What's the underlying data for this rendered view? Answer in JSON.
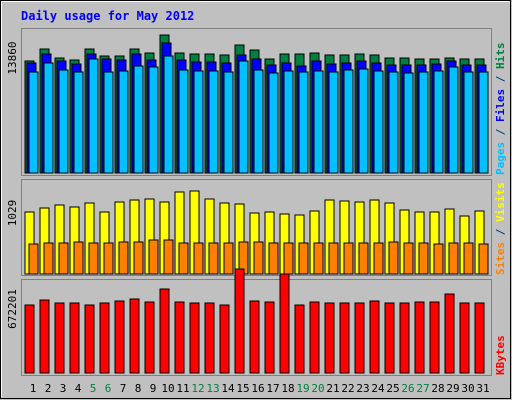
{
  "chart_data": {
    "type": "bar",
    "title": "Daily usage for May 2012",
    "categories": [
      "1",
      "2",
      "3",
      "4",
      "5",
      "6",
      "7",
      "8",
      "9",
      "10",
      "11",
      "12",
      "13",
      "14",
      "15",
      "16",
      "17",
      "18",
      "19",
      "20",
      "21",
      "22",
      "23",
      "24",
      "25",
      "26",
      "27",
      "28",
      "29",
      "30",
      "31"
    ],
    "weekend_days": [
      "5",
      "6",
      "12",
      "13",
      "19",
      "20",
      "26",
      "27"
    ],
    "panels": [
      {
        "name": "hits-files-pages",
        "ytick": "13860",
        "ymax": 13860,
        "ylabel_parts": [
          {
            "text": "Pages",
            "color": "#00c0ff"
          },
          {
            "text": " / ",
            "color": "#004080"
          },
          {
            "text": "Files",
            "color": "#0000ff"
          },
          {
            "text": " / ",
            "color": "#004080"
          },
          {
            "text": "Hits",
            "color": "#008040"
          }
        ],
        "series": [
          {
            "name": "Hits",
            "color": "#008040",
            "values": [
              12000,
              13300,
              12400,
              12100,
              13300,
              12600,
              12600,
              13300,
              12900,
              14800,
              12900,
              12800,
              12800,
              12700,
              13700,
              13200,
              12300,
              12800,
              12800,
              12900,
              12700,
              12700,
              12800,
              12700,
              12400,
              12400,
              12300,
              12300,
              12400,
              12200,
              12200
            ]
          },
          {
            "name": "Files",
            "color": "#0000ff",
            "values": [
              11800,
              12800,
              12000,
              11700,
              12800,
              12200,
              12100,
              12800,
              12100,
              14000,
              12100,
              11900,
              11900,
              11800,
              12700,
              12300,
              11600,
              11800,
              11500,
              12000,
              11700,
              11800,
              12000,
              11800,
              11600,
              11600,
              11600,
              11700,
              12000,
              11600,
              11600
            ]
          },
          {
            "name": "Pages",
            "color": "#00c0ff",
            "values": [
              10900,
              11800,
              11100,
              10900,
              12200,
              10900,
              11000,
              11500,
              11400,
              12600,
              11100,
              11000,
              11000,
              10900,
              12000,
              11100,
              10700,
              11000,
              10900,
              11000,
              10900,
              11100,
              11200,
              11000,
              10800,
              10700,
              10800,
              11000,
              11400,
              10800,
              10800
            ]
          }
        ]
      },
      {
        "name": "visits-sites",
        "ytick": "1029",
        "ymax": 1029,
        "ylabel_parts": [
          {
            "text": "Sites",
            "color": "#ff8000"
          },
          {
            "text": " / ",
            "color": "#004080"
          },
          {
            "text": "Visits",
            "color": "#ffff00"
          }
        ],
        "series": [
          {
            "name": "Visits",
            "color": "#ffff00",
            "values": [
              850,
              910,
              950,
              920,
              980,
              850,
              990,
              1010,
              1030,
              990,
              1120,
              1140,
              1030,
              970,
              960,
              840,
              850,
              830,
              810,
              860,
              1010,
              1000,
              990,
              1010,
              970,
              880,
              850,
              850,
              890,
              790,
              860
            ]
          },
          {
            "name": "Sites",
            "color": "#ff8000",
            "values": [
              410,
              420,
              420,
              440,
              420,
              420,
              440,
              440,
              460,
              460,
              430,
              420,
              420,
              430,
              440,
              440,
              420,
              430,
              420,
              430,
              420,
              420,
              430,
              420,
              440,
              420,
              420,
              410,
              430,
              420,
              410
            ]
          }
        ]
      },
      {
        "name": "kbytes",
        "ytick": "672201",
        "ymax": 672201,
        "ylabel_parts": [
          {
            "text": "KBytes",
            "color": "#ff0000"
          }
        ],
        "series": [
          {
            "name": "KBytes",
            "color": "#ff0000",
            "values": [
              590000,
              630000,
              600000,
              600000,
              590000,
              600000,
              620000,
              640000,
              610000,
              720000,
              610000,
              600000,
              600000,
              590000,
              900000,
              620000,
              610000,
              850000,
              590000,
              610000,
              600000,
              600000,
              600000,
              620000,
              600000,
              600000,
              610000,
              610000,
              680000,
              600000,
              600000
            ]
          }
        ]
      }
    ]
  }
}
